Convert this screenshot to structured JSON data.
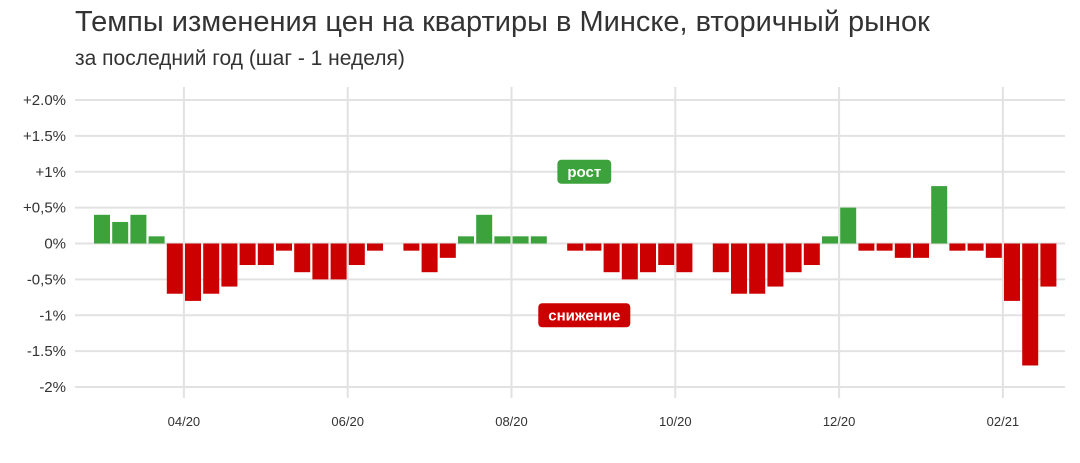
{
  "title": "Темпы изменения цен на квартиры в Минске, вторичный рынок",
  "subtitle": "за последний год (шаг - 1 неделя)",
  "colors": {
    "positive": "#3ca23c",
    "negative": "#cc0000",
    "grid": "#e2e2e2",
    "text": "#333333"
  },
  "chart_data": {
    "type": "bar",
    "title": "Темпы изменения цен на квартиры в Минске, вторичный рынок",
    "subtitle": "за последний год (шаг - 1 неделя)",
    "xlabel": "",
    "ylabel": "",
    "ylim": [
      -2.0,
      2.0
    ],
    "y_ticks": [
      2.0,
      1.5,
      1.0,
      0.5,
      0,
      -0.5,
      -1.0,
      -1.5,
      -2.0
    ],
    "y_tick_labels": [
      "+2.0%",
      "+1.5%",
      "+1%",
      "+0,5%",
      "0%",
      "-0,5%",
      "-1%",
      "-1.5%",
      "-2%"
    ],
    "x_tick_labels": [
      "04/20",
      "06/20",
      "08/20",
      "10/20",
      "12/20",
      "02/21"
    ],
    "x_tick_week_index": [
      4.5,
      13.5,
      22.5,
      31.5,
      40.5,
      49.5
    ],
    "grid": true,
    "values": [
      0.4,
      0.3,
      0.4,
      0.1,
      -0.7,
      -0.8,
      -0.7,
      -0.6,
      -0.3,
      -0.3,
      -0.1,
      -0.4,
      -0.5,
      -0.5,
      -0.3,
      -0.1,
      0,
      -0.1,
      -0.4,
      -0.2,
      0.1,
      0.4,
      0.1,
      0.1,
      0.1,
      0,
      -0.1,
      -0.1,
      -0.4,
      -0.5,
      -0.4,
      -0.3,
      -0.4,
      0,
      -0.4,
      -0.7,
      -0.7,
      -0.6,
      -0.4,
      -0.3,
      0.1,
      0.5,
      -0.1,
      -0.1,
      -0.2,
      -0.2,
      0.8,
      -0.1,
      -0.1,
      -0.2,
      -0.8,
      -1.7,
      -0.6
    ],
    "annotations": [
      {
        "text": "рост",
        "value": 1.0,
        "week_index": 26.5,
        "color": "#3ca23c"
      },
      {
        "text": "снижение",
        "value": -1.0,
        "week_index": 26.5,
        "color": "#cc0000"
      }
    ]
  }
}
